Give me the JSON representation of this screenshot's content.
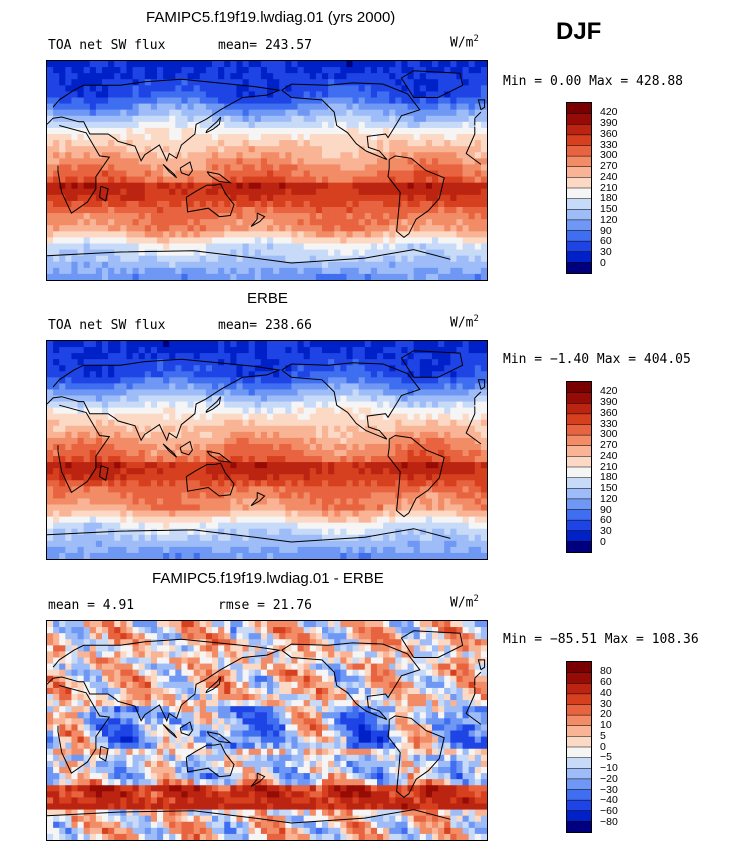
{
  "season": "DJF",
  "units": "W/m",
  "units_exp": "2",
  "contour_colors": [
    "#00007f",
    "#0020c8",
    "#1e44e6",
    "#3f6ef0",
    "#6f97f4",
    "#9ebcf7",
    "#c7daf8",
    "#f5f5f5",
    "#fbd9c5",
    "#f9b496",
    "#f28c66",
    "#e8633f",
    "#d6401f",
    "#bb2410",
    "#960b05",
    "#780000"
  ],
  "chart_data": [
    {
      "type": "heatmap",
      "title": "FAMIPC5.f19f19.lwdiag.01 (yrs 2000)",
      "field_label": "TOA net SW flux",
      "stat_label": "mean=",
      "stat_value": "243.57",
      "range_text": "Min =   0.00 Max = 428.88",
      "min": 0.0,
      "max": 428.88,
      "mean": 243.57,
      "levels": [
        "420",
        "390",
        "360",
        "330",
        "300",
        "270",
        "240",
        "210",
        "180",
        "150",
        "120",
        "90",
        "60",
        "30",
        "0"
      ]
    },
    {
      "type": "heatmap",
      "title": "ERBE",
      "field_label": "TOA net SW flux",
      "stat_label": "mean=",
      "stat_value": "238.66",
      "range_text": "Min =  −1.40 Max = 404.05",
      "min": -1.4,
      "max": 404.05,
      "mean": 238.66,
      "levels": [
        "420",
        "390",
        "360",
        "330",
        "300",
        "270",
        "240",
        "210",
        "180",
        "150",
        "120",
        "90",
        "60",
        "30",
        "0"
      ]
    },
    {
      "type": "heatmap",
      "title": "FAMIPC5.f19f19.lwdiag.01 - ERBE",
      "field_label": "mean =   4.91",
      "stat_label": "rmse =",
      "stat_value": "21.76",
      "range_text": "Min = −85.51 Max = 108.36",
      "min": -85.51,
      "max": 108.36,
      "mean": 4.91,
      "rmse": 21.76,
      "levels": [
        "80",
        "60",
        "40",
        "30",
        "20",
        "10",
        "5",
        "0",
        "−5",
        "−10",
        "−20",
        "−30",
        "−40",
        "−60",
        "−80"
      ]
    }
  ]
}
